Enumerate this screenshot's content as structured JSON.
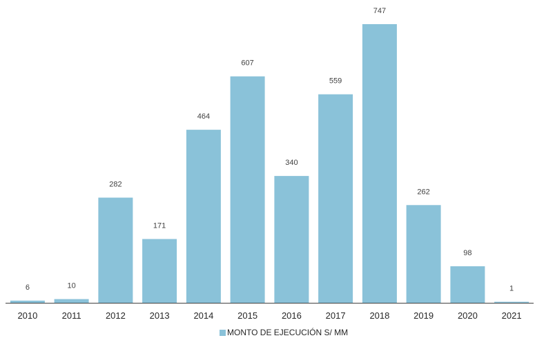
{
  "chart_data": {
    "type": "bar",
    "categories": [
      "2010",
      "2011",
      "2012",
      "2013",
      "2014",
      "2015",
      "2016",
      "2017",
      "2018",
      "2019",
      "2020",
      "2021"
    ],
    "series": [
      {
        "name": "MONTO DE EJECUCIÓN S/ MM",
        "values": [
          6,
          10,
          282,
          171,
          464,
          607,
          340,
          559,
          747,
          262,
          98,
          1
        ],
        "color": "#8AC2D9"
      }
    ],
    "data_labels": [
      "6",
      "10",
      "282",
      "171",
      "464",
      "607",
      "340",
      "559",
      "747",
      "262",
      "98",
      "1"
    ],
    "title": "",
    "xlabel": "",
    "ylabel": "",
    "ylim": [
      0,
      747
    ],
    "grid": false,
    "legend_position": "bottom",
    "axis_color": "#404040",
    "label_color": "#404040"
  }
}
